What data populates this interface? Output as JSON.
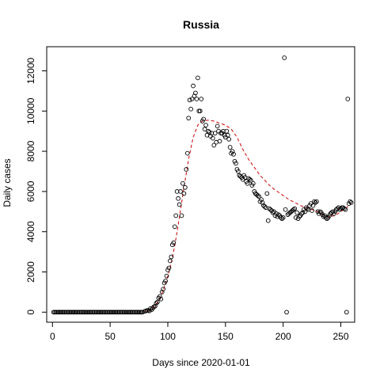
{
  "chart_data": {
    "type": "scatter",
    "title": "Russia",
    "xlabel": "Days since 2020-01-01",
    "ylabel": "Daily cases",
    "xlim": [
      -5,
      262
    ],
    "ylim": [
      -500,
      13200
    ],
    "x_ticks": [
      0,
      50,
      100,
      150,
      200,
      250
    ],
    "y_ticks": [
      0,
      2000,
      4000,
      6000,
      8000,
      10000,
      12000
    ],
    "grid": false,
    "legend": "none",
    "series": [
      {
        "style": "open circles",
        "color": "#000000",
        "points": [
          [
            1,
            0
          ],
          [
            2,
            0
          ],
          [
            3,
            0
          ],
          [
            4,
            0
          ],
          [
            5,
            0
          ],
          [
            6,
            0
          ],
          [
            7,
            0
          ],
          [
            8,
            0
          ],
          [
            9,
            0
          ],
          [
            10,
            0
          ],
          [
            11,
            0
          ],
          [
            12,
            0
          ],
          [
            13,
            0
          ],
          [
            14,
            0
          ],
          [
            15,
            0
          ],
          [
            16,
            0
          ],
          [
            17,
            0
          ],
          [
            18,
            0
          ],
          [
            19,
            0
          ],
          [
            20,
            0
          ],
          [
            21,
            0
          ],
          [
            22,
            0
          ],
          [
            23,
            0
          ],
          [
            24,
            0
          ],
          [
            25,
            0
          ],
          [
            26,
            0
          ],
          [
            27,
            0
          ],
          [
            28,
            0
          ],
          [
            29,
            0
          ],
          [
            30,
            0
          ],
          [
            31,
            0
          ],
          [
            32,
            0
          ],
          [
            33,
            0
          ],
          [
            34,
            0
          ],
          [
            35,
            0
          ],
          [
            36,
            0
          ],
          [
            37,
            0
          ],
          [
            38,
            0
          ],
          [
            39,
            0
          ],
          [
            40,
            0
          ],
          [
            41,
            0
          ],
          [
            42,
            0
          ],
          [
            43,
            0
          ],
          [
            44,
            0
          ],
          [
            45,
            0
          ],
          [
            46,
            0
          ],
          [
            47,
            0
          ],
          [
            48,
            0
          ],
          [
            49,
            0
          ],
          [
            50,
            0
          ],
          [
            51,
            0
          ],
          [
            52,
            0
          ],
          [
            53,
            0
          ],
          [
            54,
            0
          ],
          [
            55,
            0
          ],
          [
            56,
            0
          ],
          [
            57,
            0
          ],
          [
            58,
            0
          ],
          [
            59,
            0
          ],
          [
            60,
            0
          ],
          [
            61,
            0
          ],
          [
            62,
            0
          ],
          [
            63,
            0
          ],
          [
            64,
            0
          ],
          [
            65,
            0
          ],
          [
            66,
            0
          ],
          [
            67,
            0
          ],
          [
            68,
            0
          ],
          [
            69,
            0
          ],
          [
            70,
            0
          ],
          [
            71,
            0
          ],
          [
            72,
            0
          ],
          [
            73,
            0
          ],
          [
            74,
            0
          ],
          [
            75,
            0
          ],
          [
            76,
            0
          ],
          [
            77,
            0
          ],
          [
            78,
            0
          ],
          [
            80,
            40
          ],
          [
            81,
            60
          ],
          [
            82,
            80
          ],
          [
            83,
            90
          ],
          [
            84,
            60
          ],
          [
            85,
            180
          ],
          [
            86,
            120
          ],
          [
            87,
            200
          ],
          [
            88,
            270
          ],
          [
            89,
            300
          ],
          [
            90,
            450
          ],
          [
            91,
            500
          ],
          [
            92,
            700
          ],
          [
            93,
            780
          ],
          [
            94,
            650
          ],
          [
            95,
            1000
          ],
          [
            96,
            1150
          ],
          [
            97,
            1450
          ],
          [
            98,
            1550
          ],
          [
            99,
            1800
          ],
          [
            100,
            2100
          ],
          [
            101,
            2200
          ],
          [
            102,
            2550
          ],
          [
            103,
            2750
          ],
          [
            104,
            3350
          ],
          [
            105,
            3450
          ],
          [
            106,
            4250
          ],
          [
            107,
            4800
          ],
          [
            108,
            6000
          ],
          [
            109,
            5650
          ],
          [
            110,
            5350
          ],
          [
            111,
            6000
          ],
          [
            112,
            4800
          ],
          [
            113,
            6400
          ],
          [
            114,
            5900
          ],
          [
            115,
            6200
          ],
          [
            116,
            7100
          ],
          [
            117,
            7900
          ],
          [
            118,
            9650
          ],
          [
            119,
            10550
          ],
          [
            120,
            10100
          ],
          [
            121,
            10600
          ],
          [
            122,
            11250
          ],
          [
            123,
            10750
          ],
          [
            124,
            10900
          ],
          [
            125,
            10600
          ],
          [
            126,
            11650
          ],
          [
            127,
            10000
          ],
          [
            128,
            10000
          ],
          [
            129,
            10600
          ],
          [
            130,
            9500
          ],
          [
            131,
            9600
          ],
          [
            132,
            9100
          ],
          [
            133,
            9300
          ],
          [
            134,
            8800
          ],
          [
            135,
            9000
          ],
          [
            136,
            8950
          ],
          [
            137,
            8750
          ],
          [
            138,
            8900
          ],
          [
            139,
            8650
          ],
          [
            140,
            8300
          ],
          [
            141,
            8900
          ],
          [
            142,
            8450
          ],
          [
            143,
            9250
          ],
          [
            144,
            9000
          ],
          [
            145,
            8500
          ],
          [
            146,
            8900
          ],
          [
            147,
            8900
          ],
          [
            148,
            9000
          ],
          [
            149,
            8800
          ],
          [
            150,
            8700
          ],
          [
            151,
            9000
          ],
          [
            152,
            8800
          ],
          [
            153,
            8600
          ],
          [
            154,
            8200
          ],
          [
            155,
            7900
          ],
          [
            156,
            8000
          ],
          [
            157,
            7850
          ],
          [
            158,
            7500
          ],
          [
            159,
            7400
          ],
          [
            160,
            7100
          ],
          [
            161,
            7000
          ],
          [
            162,
            6800
          ],
          [
            163,
            6750
          ],
          [
            164,
            6700
          ],
          [
            165,
            6600
          ],
          [
            166,
            6800
          ],
          [
            167,
            6700
          ],
          [
            168,
            6500
          ],
          [
            169,
            6400
          ],
          [
            170,
            6650
          ],
          [
            171,
            6600
          ],
          [
            172,
            6550
          ],
          [
            173,
            6300
          ],
          [
            174,
            6400
          ],
          [
            175,
            6000
          ],
          [
            176,
            5900
          ],
          [
            177,
            5850
          ],
          [
            178,
            5800
          ],
          [
            179,
            5750
          ],
          [
            180,
            5500
          ],
          [
            181,
            5600
          ],
          [
            182,
            5450
          ],
          [
            183,
            5300
          ],
          [
            184,
            5250
          ],
          [
            185,
            5200
          ],
          [
            186,
            5900
          ],
          [
            187,
            4550
          ],
          [
            188,
            5150
          ],
          [
            189,
            5100
          ],
          [
            190,
            5050
          ],
          [
            191,
            4950
          ],
          [
            192,
            5000
          ],
          [
            193,
            4800
          ],
          [
            194,
            4900
          ],
          [
            195,
            4750
          ],
          [
            196,
            4850
          ],
          [
            197,
            4800
          ],
          [
            198,
            4700
          ],
          [
            199,
            4650
          ],
          [
            200,
            4700
          ],
          [
            201,
            12650
          ],
          [
            202,
            5100
          ],
          [
            203,
            0
          ],
          [
            204,
            4850
          ],
          [
            205,
            4900
          ],
          [
            206,
            4950
          ],
          [
            207,
            5000
          ],
          [
            208,
            5050
          ],
          [
            209,
            5100
          ],
          [
            210,
            5150
          ],
          [
            211,
            4700
          ],
          [
            212,
            4950
          ],
          [
            213,
            4650
          ],
          [
            214,
            4750
          ],
          [
            215,
            4800
          ],
          [
            216,
            4900
          ],
          [
            217,
            4950
          ],
          [
            218,
            5100
          ],
          [
            219,
            5000
          ],
          [
            220,
            5200
          ],
          [
            221,
            5150
          ],
          [
            222,
            5100
          ],
          [
            223,
            5300
          ],
          [
            224,
            5400
          ],
          [
            225,
            5050
          ],
          [
            226,
            5300
          ],
          [
            227,
            5500
          ],
          [
            228,
            5450
          ],
          [
            229,
            5500
          ],
          [
            230,
            5000
          ],
          [
            231,
            4900
          ],
          [
            232,
            5000
          ],
          [
            233,
            4950
          ],
          [
            234,
            4850
          ],
          [
            235,
            4750
          ],
          [
            236,
            4800
          ],
          [
            237,
            4700
          ],
          [
            238,
            4650
          ],
          [
            239,
            4700
          ],
          [
            240,
            4800
          ],
          [
            241,
            4900
          ],
          [
            242,
            4950
          ],
          [
            243,
            5000
          ],
          [
            244,
            4900
          ],
          [
            245,
            5000
          ],
          [
            246,
            5100
          ],
          [
            247,
            5150
          ],
          [
            248,
            5200
          ],
          [
            249,
            5100
          ],
          [
            250,
            5150
          ],
          [
            251,
            5200
          ],
          [
            252,
            5200
          ],
          [
            253,
            5150
          ],
          [
            254,
            5100
          ],
          [
            255,
            0
          ],
          [
            256,
            10600
          ],
          [
            257,
            5400
          ],
          [
            258,
            5500
          ],
          [
            259,
            5450
          ]
        ]
      },
      {
        "style": "dashed line (smoothed fit)",
        "color": "#cc0000",
        "points": [
          [
            78,
            0
          ],
          [
            82,
            50
          ],
          [
            86,
            150
          ],
          [
            90,
            400
          ],
          [
            94,
            800
          ],
          [
            98,
            1400
          ],
          [
            102,
            2200
          ],
          [
            106,
            3300
          ],
          [
            110,
            4700
          ],
          [
            114,
            6200
          ],
          [
            118,
            7600
          ],
          [
            122,
            8700
          ],
          [
            126,
            9300
          ],
          [
            130,
            9500
          ],
          [
            135,
            9550
          ],
          [
            140,
            9500
          ],
          [
            145,
            9400
          ],
          [
            150,
            9300
          ],
          [
            155,
            9100
          ],
          [
            160,
            8700
          ],
          [
            165,
            8100
          ],
          [
            170,
            7600
          ],
          [
            175,
            7200
          ],
          [
            180,
            6800
          ],
          [
            185,
            6500
          ],
          [
            190,
            6200
          ],
          [
            195,
            6000
          ],
          [
            200,
            5800
          ],
          [
            205,
            5600
          ],
          [
            210,
            5450
          ],
          [
            215,
            5300
          ],
          [
            220,
            5200
          ],
          [
            225,
            5100
          ],
          [
            230,
            5000
          ],
          [
            235,
            4850
          ],
          [
            240,
            4750
          ],
          [
            245,
            4800
          ],
          [
            250,
            5000
          ],
          [
            255,
            5200
          ],
          [
            259,
            5400
          ]
        ]
      }
    ]
  }
}
